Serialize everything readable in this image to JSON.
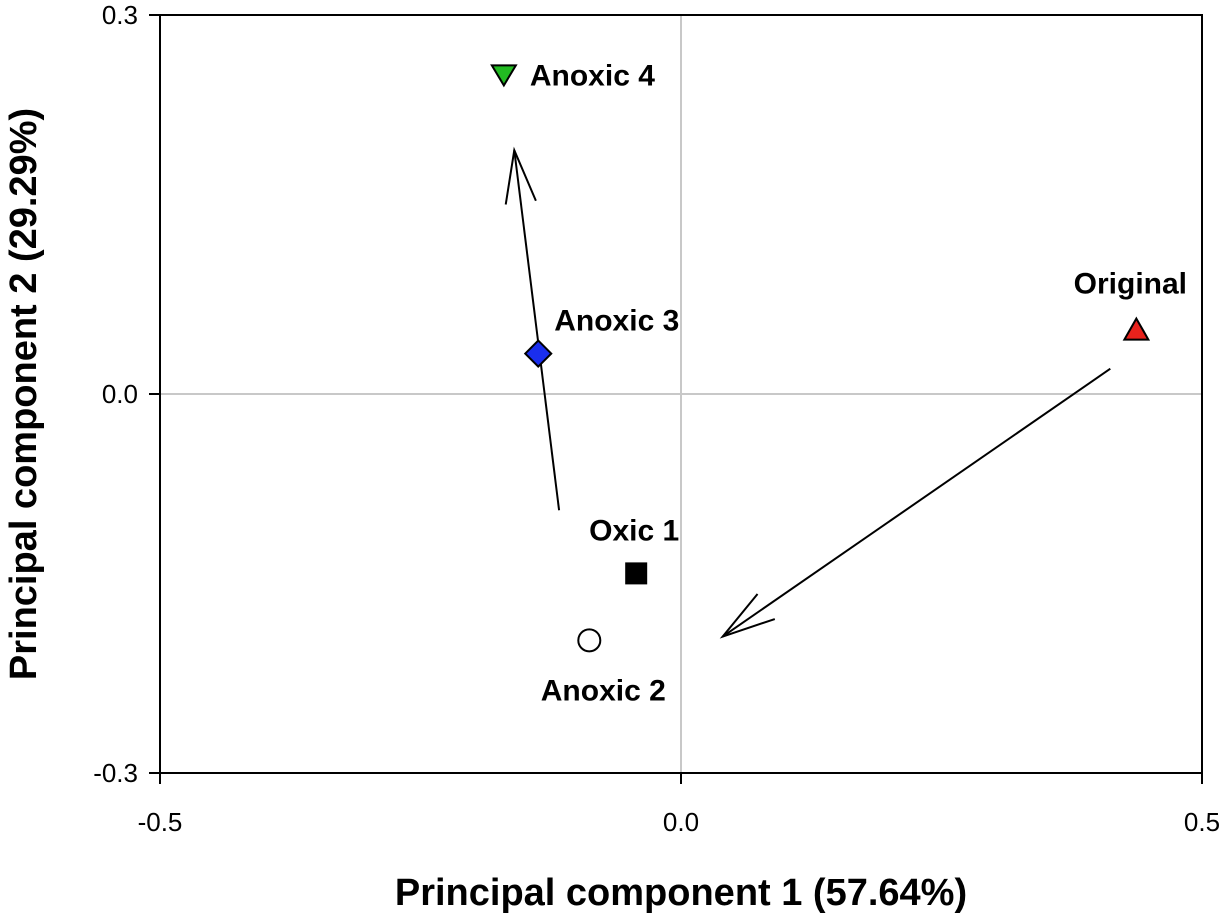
{
  "chart_data": {
    "type": "scatter",
    "xlabel": "Principal component 1 (57.64%)",
    "ylabel": "Principal component 2 (29.29%)",
    "xlim": [
      -0.5,
      0.5
    ],
    "ylim": [
      -0.3,
      0.3
    ],
    "xticks": [
      "-0.5",
      "0.0",
      "0.5"
    ],
    "yticks": [
      "-0.3",
      "0.0",
      "0.3"
    ],
    "zero_lines": true,
    "grid": false,
    "points": [
      {
        "label": "Anoxic 4",
        "x": -0.17,
        "y": 0.253,
        "marker": "triangle-down",
        "color": "#22bb22"
      },
      {
        "label": "Anoxic 3",
        "x": -0.137,
        "y": 0.032,
        "marker": "diamond",
        "color": "#1a2eee"
      },
      {
        "label": "Original",
        "x": 0.437,
        "y": 0.051,
        "marker": "triangle-up",
        "color": "#e8221c"
      },
      {
        "label": "Oxic 1",
        "x": -0.043,
        "y": -0.142,
        "marker": "square",
        "color": "#000000"
      },
      {
        "label": "Anoxic 2",
        "x": -0.088,
        "y": -0.195,
        "marker": "circle",
        "color": "#ffffff"
      }
    ],
    "arrows": [
      {
        "from": [
          -0.117,
          -0.092
        ],
        "to": [
          -0.16,
          0.193
        ]
      },
      {
        "from": [
          0.412,
          0.02
        ],
        "to": [
          0.04,
          -0.192
        ]
      }
    ]
  }
}
